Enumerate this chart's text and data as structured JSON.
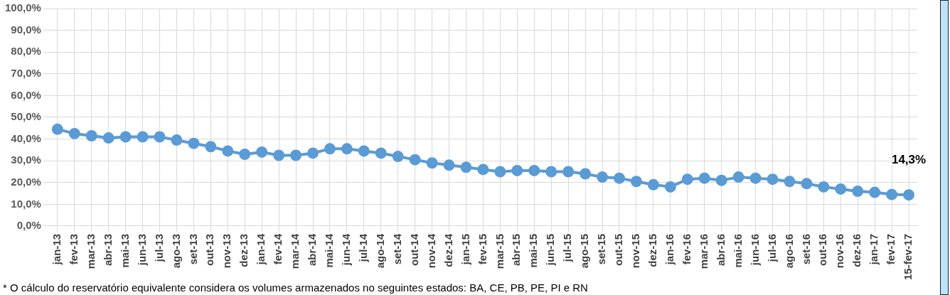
{
  "chart_data": {
    "type": "line",
    "categories": [
      "jan-13",
      "fev-13",
      "mar-13",
      "abr-13",
      "mai-13",
      "jun-13",
      "jul-13",
      "ago-13",
      "set-13",
      "out-13",
      "nov-13",
      "dez-13",
      "jan-14",
      "fev-14",
      "mar-14",
      "abr-14",
      "mai-14",
      "jun-14",
      "jul-14",
      "ago-14",
      "set-14",
      "out-14",
      "nov-14",
      "dez-14",
      "jan-15",
      "fev-15",
      "mar-15",
      "abr-15",
      "mai-15",
      "jun-15",
      "jul-15",
      "ago-15",
      "set-15",
      "out-15",
      "nov-15",
      "dez-15",
      "jan-16",
      "fev-16",
      "mar-16",
      "abr-16",
      "mai-16",
      "jun-16",
      "jul-16",
      "ago-16",
      "set-16",
      "out-16",
      "nov-16",
      "dez-16",
      "jan-17",
      "fev-17",
      "15-fev-17"
    ],
    "series": [
      {
        "color": "#5b9bd5",
        "values": [
          44.5,
          42.5,
          41.5,
          40.5,
          41,
          41,
          41,
          39.5,
          38,
          36.5,
          34.5,
          33,
          34,
          32.5,
          32.5,
          33.5,
          35.5,
          35.5,
          34.5,
          33.5,
          32,
          30.5,
          29,
          28,
          27,
          26,
          25,
          25.5,
          25.5,
          25,
          25,
          24,
          22.5,
          22,
          20.5,
          19,
          18,
          21.5,
          22,
          21,
          22.5,
          22,
          21.5,
          20.5,
          19.5,
          18,
          17,
          16,
          15.5,
          14.5,
          14.3
        ],
        "value_labels": [
          null,
          null,
          null,
          null,
          null,
          null,
          null,
          null,
          null,
          null,
          null,
          null,
          null,
          null,
          null,
          null,
          null,
          null,
          null,
          null,
          null,
          null,
          null,
          null,
          null,
          null,
          null,
          null,
          null,
          null,
          null,
          null,
          null,
          null,
          null,
          null,
          null,
          null,
          null,
          null,
          null,
          null,
          null,
          null,
          null,
          null,
          null,
          null,
          null,
          null,
          "14,3%"
        ]
      }
    ],
    "ylim": [
      0,
      100
    ],
    "yticks": [
      {
        "value": 0,
        "label": "0,0%"
      },
      {
        "value": 10,
        "label": "10,0%"
      },
      {
        "value": 20,
        "label": "20,0%"
      },
      {
        "value": 30,
        "label": "30,0%"
      },
      {
        "value": 40,
        "label": "40,0%"
      },
      {
        "value": 50,
        "label": "50,0%"
      },
      {
        "value": 60,
        "label": "60,0%"
      },
      {
        "value": 70,
        "label": "70,0%"
      },
      {
        "value": 80,
        "label": "80,0%"
      },
      {
        "value": 90,
        "label": "90,0%"
      },
      {
        "value": 100,
        "label": "100,0%"
      }
    ],
    "grid": true,
    "legend": false,
    "marker": "circle",
    "line_style": "solid",
    "annotations": [
      "* O cálculo do reservatório equivalente considera os volumes armazenados no seguintes estados: BA, CE, PB, PE, PI e RN"
    ]
  }
}
